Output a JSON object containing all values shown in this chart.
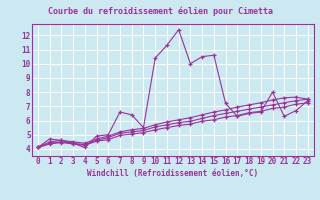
{
  "title": "Courbe du refroidissement éolien pour Cimetta",
  "xlabel": "Windchill (Refroidissement éolien,°C)",
  "ylabel": "",
  "xlim": [
    -0.5,
    23.5
  ],
  "ylim": [
    3.5,
    12.8
  ],
  "yticks": [
    4,
    5,
    6,
    7,
    8,
    9,
    10,
    11,
    12
  ],
  "xticks": [
    0,
    1,
    2,
    3,
    4,
    5,
    6,
    7,
    8,
    9,
    10,
    11,
    12,
    13,
    14,
    15,
    16,
    17,
    18,
    19,
    20,
    21,
    22,
    23
  ],
  "bg_color": "#cce8f0",
  "grid_color": "#ffffff",
  "line_color": "#993399",
  "title_color": "#993399",
  "curve1_y": [
    4.1,
    4.7,
    4.6,
    4.4,
    4.1,
    4.9,
    5.0,
    6.6,
    6.4,
    5.5,
    10.4,
    11.3,
    12.4,
    10.0,
    10.5,
    10.6,
    7.2,
    6.3,
    6.5,
    6.6,
    8.0,
    6.3,
    6.7,
    7.4
  ],
  "curve2_y": [
    4.1,
    4.35,
    4.45,
    4.35,
    4.25,
    4.55,
    4.65,
    4.95,
    5.05,
    5.15,
    5.35,
    5.5,
    5.65,
    5.75,
    5.95,
    6.05,
    6.25,
    6.35,
    6.55,
    6.65,
    6.85,
    6.95,
    7.15,
    7.25
  ],
  "curve3_y": [
    4.1,
    4.4,
    4.5,
    4.4,
    4.3,
    4.6,
    4.8,
    5.1,
    5.2,
    5.3,
    5.55,
    5.7,
    5.85,
    5.95,
    6.15,
    6.35,
    6.5,
    6.65,
    6.8,
    6.95,
    7.1,
    7.25,
    7.4,
    7.5
  ],
  "curve4_y": [
    4.1,
    4.5,
    4.6,
    4.5,
    4.4,
    4.7,
    4.9,
    5.2,
    5.35,
    5.45,
    5.7,
    5.9,
    6.05,
    6.2,
    6.4,
    6.6,
    6.75,
    6.95,
    7.1,
    7.25,
    7.45,
    7.6,
    7.65,
    7.5
  ],
  "tick_fontsize": 5.5,
  "xlabel_fontsize": 5.5,
  "title_fontsize": 6.0,
  "linewidth": 0.8,
  "marker_size": 3.0
}
